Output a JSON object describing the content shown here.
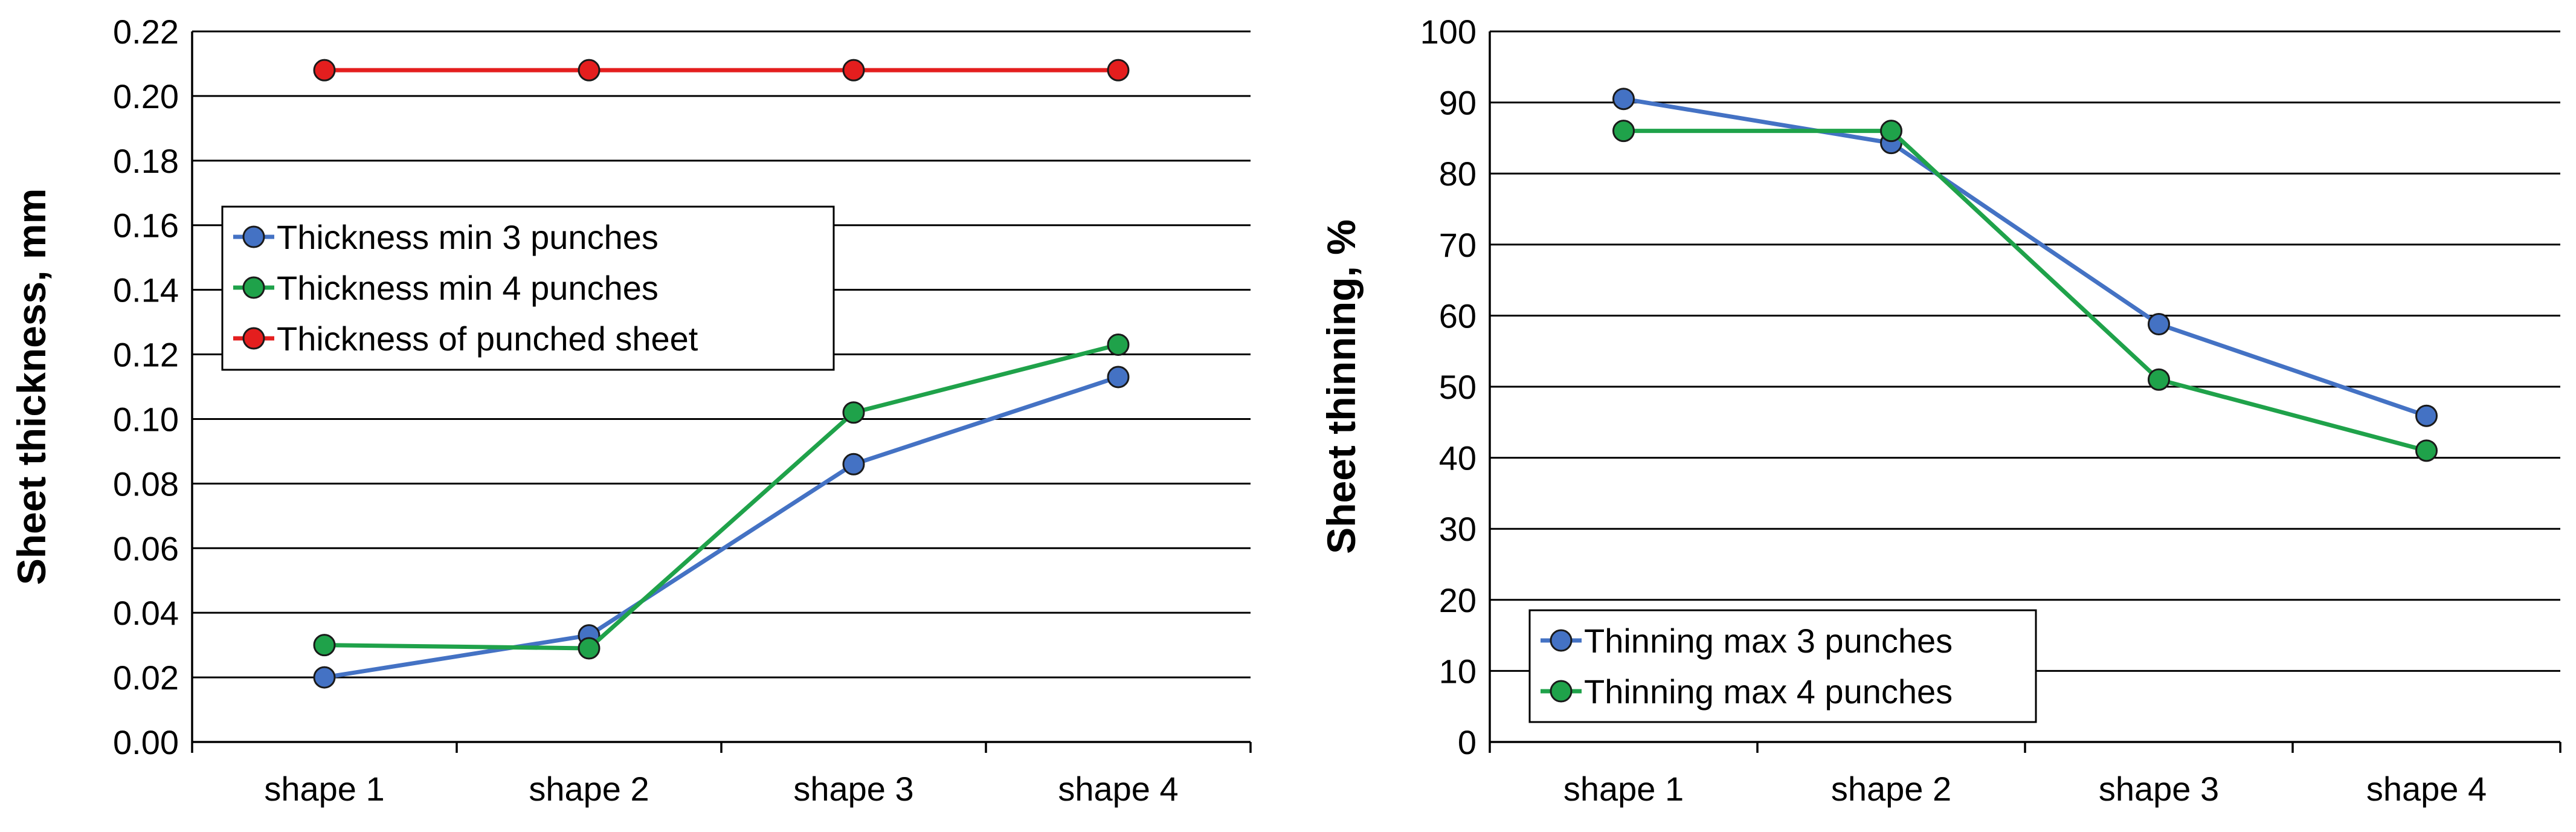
{
  "colors": {
    "blue": "#4472C4",
    "green": "#1FA24A",
    "red": "#E41E1E",
    "marker_stroke": "#1a1a1a"
  },
  "chart_data": [
    {
      "type": "line",
      "title": "",
      "xlabel": "",
      "ylabel": "Sheet thickness, mm",
      "ylim": [
        0,
        0.22
      ],
      "ystep": 0.02,
      "ytick_decimals": 2,
      "categories": [
        "shape 1",
        "shape 2",
        "shape 3",
        "shape 4"
      ],
      "legend_position": "middle-left",
      "series": [
        {
          "name": "Thickness min 3 punches",
          "color": "#4472C4",
          "values": [
            0.02,
            0.033,
            0.086,
            0.113
          ]
        },
        {
          "name": "Thickness min 4 punches",
          "color": "#1FA24A",
          "values": [
            0.03,
            0.029,
            0.102,
            0.123
          ]
        },
        {
          "name": "Thickness of punched sheet",
          "color": "#E41E1E",
          "values": [
            0.208,
            0.208,
            0.208,
            0.208
          ]
        }
      ]
    },
    {
      "type": "line",
      "title": "",
      "xlabel": "",
      "ylabel": "Sheet thinning, %",
      "ylim": [
        0,
        100
      ],
      "ystep": 10,
      "ytick_decimals": 0,
      "categories": [
        "shape 1",
        "shape 2",
        "shape 3",
        "shape 4"
      ],
      "legend_position": "bottom-left",
      "series": [
        {
          "name": "Thinning max 3 punches",
          "color": "#4472C4",
          "values": [
            90.5,
            84.3,
            58.8,
            45.9
          ]
        },
        {
          "name": "Thinning max 4 punches",
          "color": "#1FA24A",
          "values": [
            86.0,
            86.0,
            51.0,
            41.0
          ]
        }
      ]
    }
  ]
}
